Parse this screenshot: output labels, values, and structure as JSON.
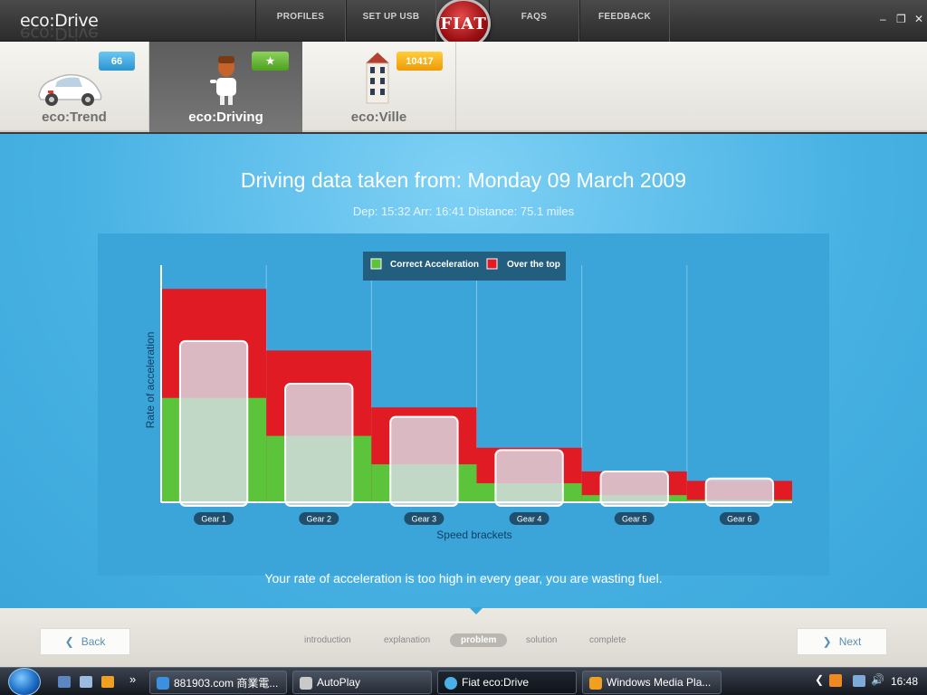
{
  "app": {
    "logo": "eco:Drive",
    "brand_badge": "FIAT"
  },
  "topnav": {
    "left": [
      "PROFILES",
      "SET UP USB"
    ],
    "right": [
      "FAQS",
      "FEEDBACK"
    ]
  },
  "window_controls": {
    "minimize": "–",
    "restore": "❐",
    "close": "✕"
  },
  "tabs": [
    {
      "label": "eco:Trend",
      "badge": "66",
      "badge_color": "#2c94cf",
      "active": false
    },
    {
      "label": "eco:Driving",
      "badge": "★",
      "badge_color": "#4e9f1f",
      "active": true
    },
    {
      "label": "eco:Ville",
      "badge": "10417",
      "badge_color": "#ef9a07",
      "active": false
    }
  ],
  "main": {
    "heading": "Driving data taken from: Monday 09 March 2009",
    "subheading": "Dep: 15:32 Arr: 16:41 Distance: 75.1 miles",
    "message": "Your rate of acceleration is too high in every gear, you are wasting fuel."
  },
  "chart_data": {
    "type": "bar",
    "categories": [
      "Gear 1",
      "Gear 2",
      "Gear 3",
      "Gear 4",
      "Gear 5",
      "Gear 6"
    ],
    "series": [
      {
        "name": "Correct Acceleration",
        "color": "#5cc43a",
        "values": [
          44,
          28,
          16,
          8,
          3,
          1
        ]
      },
      {
        "name": "Over the top",
        "color": "#e01b24",
        "values": [
          90,
          64,
          40,
          23,
          13,
          9
        ]
      },
      {
        "name": "",
        "color": "#d8dde6",
        "values": [
          68,
          50,
          36,
          22,
          13,
          10
        ]
      }
    ],
    "xlabel": "Speed brackets",
    "ylabel": "Rate of acceleration",
    "ylim": [
      0,
      100
    ],
    "legend_position": "top-center"
  },
  "steps": {
    "items": [
      "introduction",
      "explanation",
      "problem",
      "solution",
      "complete"
    ],
    "active_index": 2
  },
  "bottom_nav": {
    "back": "Back",
    "next": "Next"
  },
  "taskbar": {
    "tasks": [
      "881903.com 商業電...",
      "AutoPlay",
      "Fiat eco:Drive",
      "Windows Media Pla..."
    ],
    "active_task": 2,
    "overflow": "»",
    "clock": "16:48"
  }
}
